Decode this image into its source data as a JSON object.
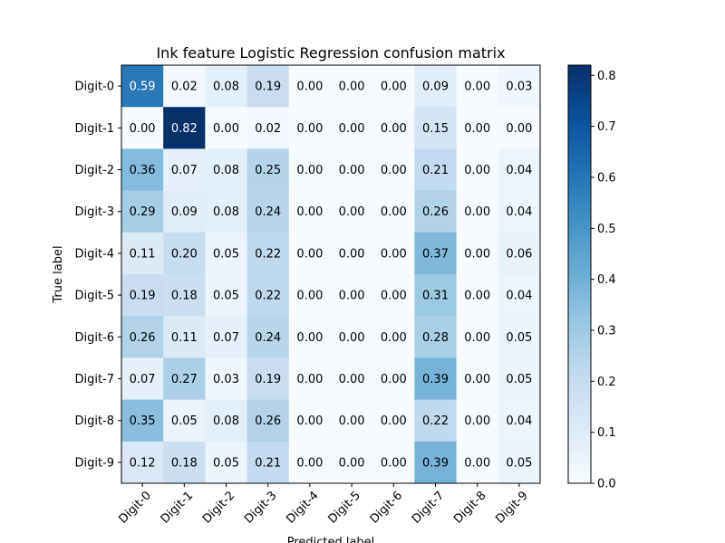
{
  "chart_data": {
    "type": "heatmap",
    "title": "Ink feature Logistic Regression confusion matrix",
    "xlabel": "Predicted label",
    "ylabel": "True label",
    "x_categories": [
      "Digit-0",
      "Digit-1",
      "Digit-2",
      "Digit-3",
      "Digit-4",
      "Digit-5",
      "Digit-6",
      "Digit-7",
      "Digit-8",
      "Digit-9"
    ],
    "y_categories": [
      "Digit-0",
      "Digit-1",
      "Digit-2",
      "Digit-3",
      "Digit-4",
      "Digit-5",
      "Digit-6",
      "Digit-7",
      "Digit-8",
      "Digit-9"
    ],
    "values": [
      [
        0.59,
        0.02,
        0.08,
        0.19,
        0.0,
        0.0,
        0.0,
        0.09,
        0.0,
        0.03
      ],
      [
        0.0,
        0.82,
        0.0,
        0.02,
        0.0,
        0.0,
        0.0,
        0.15,
        0.0,
        0.0
      ],
      [
        0.36,
        0.07,
        0.08,
        0.25,
        0.0,
        0.0,
        0.0,
        0.21,
        0.0,
        0.04
      ],
      [
        0.29,
        0.09,
        0.08,
        0.24,
        0.0,
        0.0,
        0.0,
        0.26,
        0.0,
        0.04
      ],
      [
        0.11,
        0.2,
        0.05,
        0.22,
        0.0,
        0.0,
        0.0,
        0.37,
        0.0,
        0.06
      ],
      [
        0.19,
        0.18,
        0.05,
        0.22,
        0.0,
        0.0,
        0.0,
        0.31,
        0.0,
        0.04
      ],
      [
        0.26,
        0.11,
        0.07,
        0.24,
        0.0,
        0.0,
        0.0,
        0.28,
        0.0,
        0.05
      ],
      [
        0.07,
        0.27,
        0.03,
        0.19,
        0.0,
        0.0,
        0.0,
        0.39,
        0.0,
        0.05
      ],
      [
        0.35,
        0.05,
        0.08,
        0.26,
        0.0,
        0.0,
        0.0,
        0.22,
        0.0,
        0.04
      ],
      [
        0.12,
        0.18,
        0.05,
        0.21,
        0.0,
        0.0,
        0.0,
        0.39,
        0.0,
        0.05
      ]
    ],
    "colormap": "Blues",
    "color_range": [
      0.0,
      0.82
    ],
    "colorbar_ticks": [
      "0.0",
      "0.1",
      "0.2",
      "0.3",
      "0.4",
      "0.5",
      "0.6",
      "0.7",
      "0.8"
    ],
    "grid": false
  }
}
